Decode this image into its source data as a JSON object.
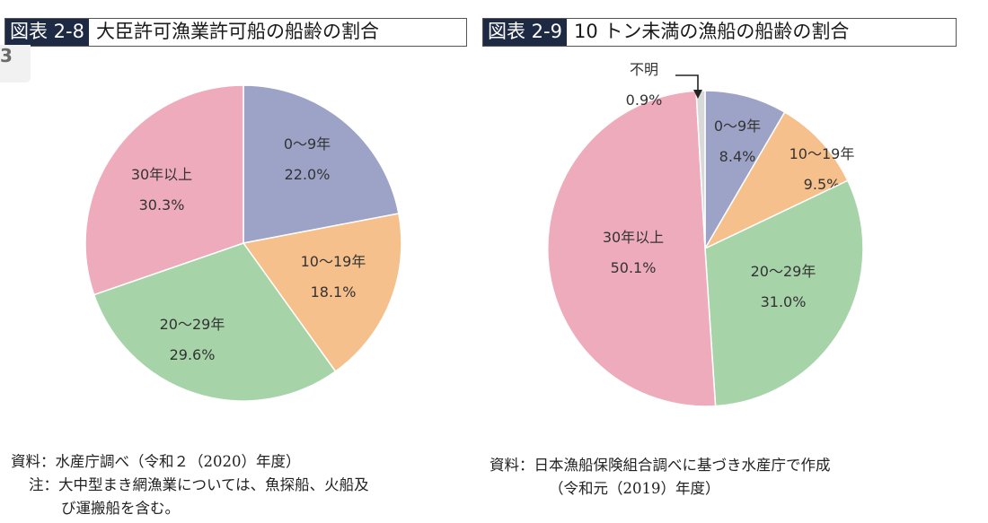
{
  "chart_data": [
    {
      "type": "pie",
      "title_label": "図表 2-8",
      "title": "大臣許可漁業許可船の船齢の割合",
      "slices": [
        {
          "category": "0〜9年",
          "percent_label": "22.0%",
          "value": 22.0,
          "color": "#9ca3c6"
        },
        {
          "category": "10〜19年",
          "percent_label": "18.1%",
          "value": 18.1,
          "color": "#f6c08c"
        },
        {
          "category": "20〜29年",
          "percent_label": "29.6%",
          "value": 29.6,
          "color": "#a6d4a8"
        },
        {
          "category": "30年以上",
          "percent_label": "30.3%",
          "value": 30.3,
          "color": "#eeabbb"
        }
      ],
      "notes": [
        "資料：水産庁調べ（令和２（2020）年度）",
        "注：大中型まき網漁業については、魚探船、火船及",
        "び運搬船を含む。"
      ]
    },
    {
      "type": "pie",
      "title_label": "図表 2-9",
      "title": "10 トン未満の漁船の船齢の割合",
      "slices": [
        {
          "category": "0〜9年",
          "percent_label": "8.4%",
          "value": 8.4,
          "color": "#9ca3c6"
        },
        {
          "category": "10〜19年",
          "percent_label": "9.5%",
          "value": 9.5,
          "color": "#f6c08c"
        },
        {
          "category": "20〜29年",
          "percent_label": "31.0%",
          "value": 31.0,
          "color": "#a6d4a8"
        },
        {
          "category": "30年以上",
          "percent_label": "50.1%",
          "value": 50.1,
          "color": "#eeabbb"
        },
        {
          "category": "不明",
          "percent_label": "0.9%",
          "value": 0.9,
          "color": "#d9d9d9"
        }
      ],
      "notes": [
        "資料：日本漁船保険組合調べに基づき水産庁で作成",
        "（令和元（2019）年度）"
      ]
    }
  ],
  "page": {
    "corner_tag": "3"
  }
}
